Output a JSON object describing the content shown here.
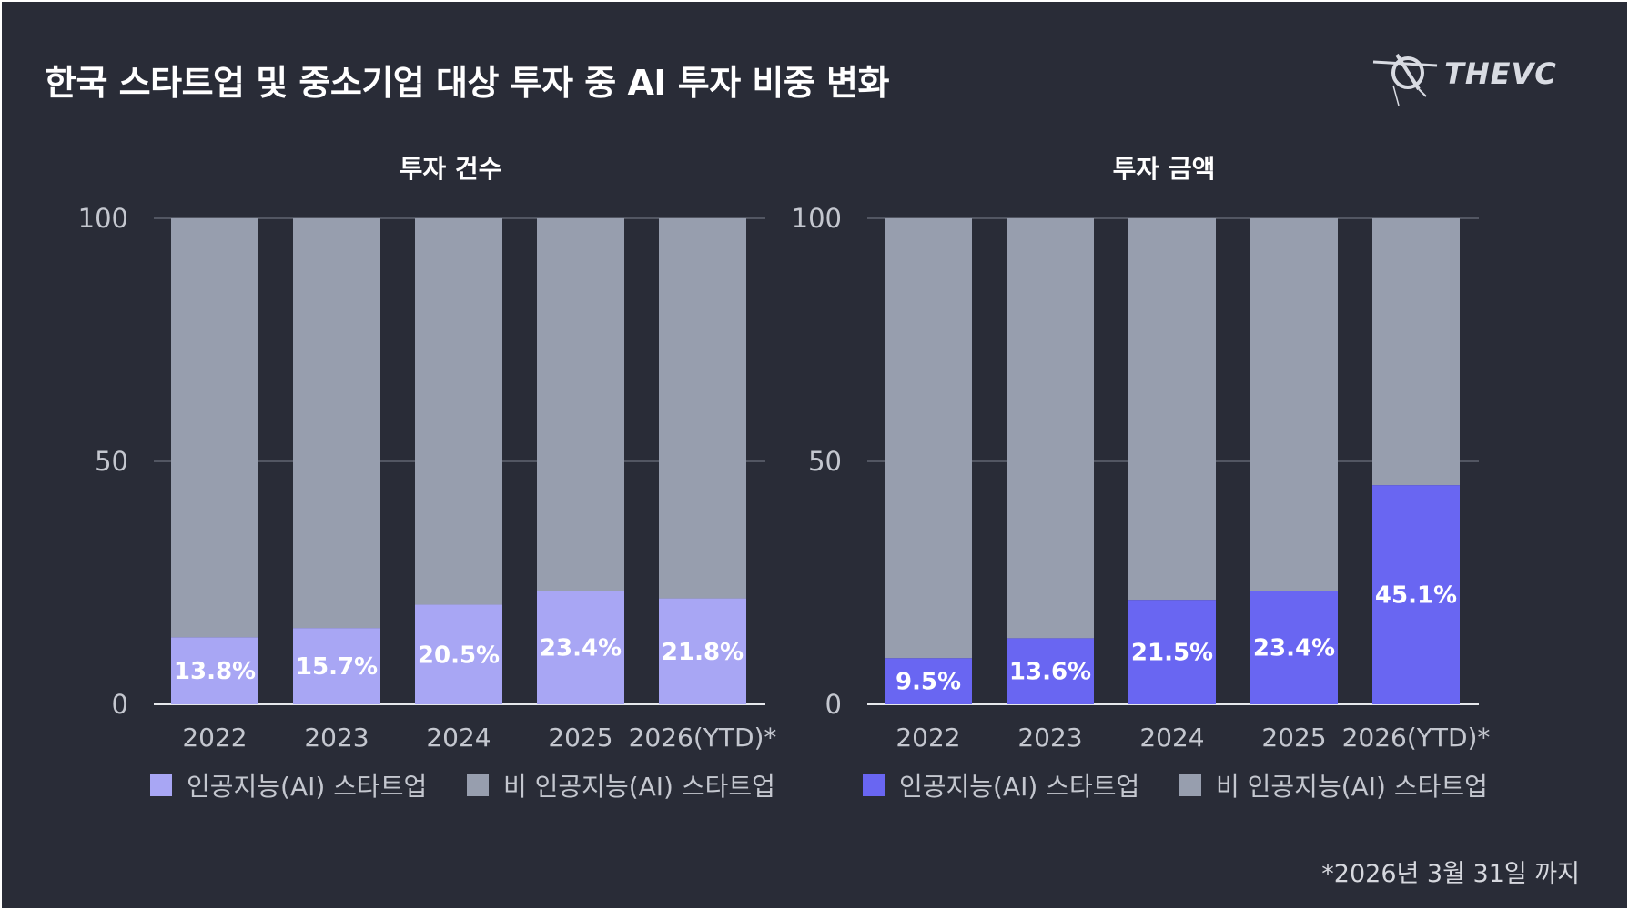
{
  "header": {
    "title": "한국 스타트업 및 중소기업 대상 투자 중 AI 투자 비중 변화",
    "logo_text": "THEVC"
  },
  "footnote": "*2026년 3월 31일 까지",
  "colors": {
    "background": "#292c37",
    "non_ai": "#979eae",
    "ai_count": "#a8a6f4",
    "ai_amount": "#6966f2",
    "gridline": "#7a7f8c"
  },
  "chart_data": [
    {
      "type": "bar",
      "stacked": true,
      "title": "투자 건수",
      "categories": [
        "2022",
        "2023",
        "2024",
        "2025",
        "2026(YTD)*"
      ],
      "ylim": [
        0,
        100
      ],
      "yticks": [
        "0",
        "50",
        "100"
      ],
      "series": [
        {
          "name": "인공지능(AI) 스타트업",
          "values": [
            13.8,
            15.7,
            20.5,
            23.4,
            21.8
          ],
          "labels": [
            "13.8%",
            "15.7%",
            "20.5%",
            "23.4%",
            "21.8%"
          ],
          "color": "#a8a6f4"
        },
        {
          "name": "비 인공지능(AI) 스타트업",
          "values": [
            86.2,
            84.3,
            79.5,
            76.6,
            78.2
          ],
          "color": "#979eae"
        }
      ],
      "legend_position": "bottom"
    },
    {
      "type": "bar",
      "stacked": true,
      "title": "투자 금액",
      "categories": [
        "2022",
        "2023",
        "2024",
        "2025",
        "2026(YTD)*"
      ],
      "ylim": [
        0,
        100
      ],
      "yticks": [
        "0",
        "50",
        "100"
      ],
      "series": [
        {
          "name": "인공지능(AI) 스타트업",
          "values": [
            9.5,
            13.6,
            21.5,
            23.4,
            45.1
          ],
          "labels": [
            "9.5%",
            "13.6%",
            "21.5%",
            "23.4%",
            "45.1%"
          ],
          "color": "#6966f2"
        },
        {
          "name": "비 인공지능(AI) 스타트업",
          "values": [
            90.5,
            86.4,
            78.5,
            76.6,
            54.9
          ],
          "color": "#979eae"
        }
      ],
      "legend_position": "bottom"
    }
  ]
}
